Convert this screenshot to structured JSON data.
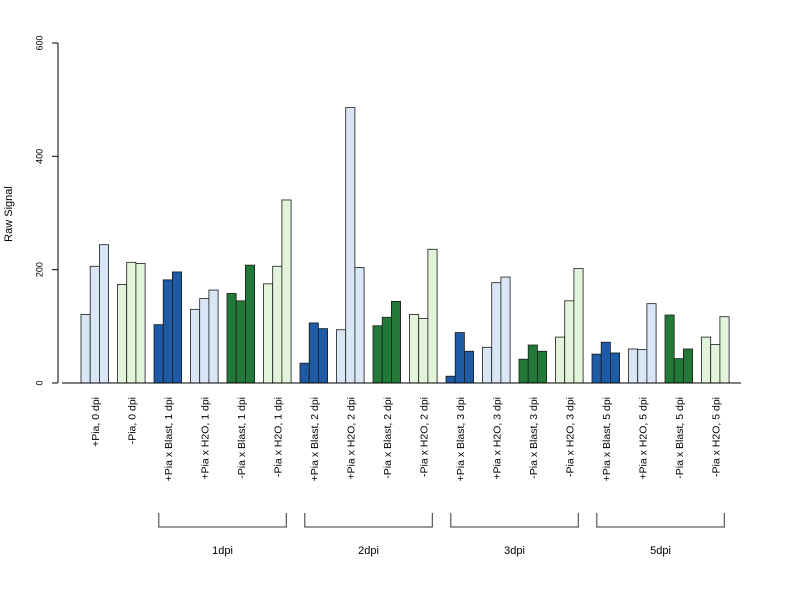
{
  "chart_data": {
    "type": "bar",
    "title": "",
    "xlabel": "",
    "ylabel": "Raw Signal",
    "ylim": [
      0,
      600
    ],
    "yticks": [
      0,
      200,
      400,
      600
    ],
    "grid": false,
    "colors": {
      "light_blue": "#d9e6f5",
      "dark_blue": "#1f5aa6",
      "light_green": "#e2f4da",
      "dark_green": "#237a38"
    },
    "groups": [
      {
        "label": "+Pia, 0 dpi",
        "color": "light_blue",
        "values": [
          121,
          206,
          244
        ]
      },
      {
        "label": "-Pia, 0 dpi",
        "color": "light_green",
        "values": [
          174,
          213,
          211
        ]
      },
      {
        "label": "+Pia x Blast, 1 dpi",
        "color": "dark_blue",
        "values": [
          103,
          182,
          196
        ]
      },
      {
        "label": "+Pia x H2O, 1 dpi",
        "color": "light_blue",
        "values": [
          130,
          149,
          164
        ]
      },
      {
        "label": "-Pia x Blast, 1 dpi",
        "color": "dark_green",
        "values": [
          158,
          145,
          208
        ]
      },
      {
        "label": "-Pia x H2O, 1 dpi",
        "color": "light_green",
        "values": [
          175,
          206,
          323
        ]
      },
      {
        "label": "+Pia x Blast, 2 dpi",
        "color": "dark_blue",
        "values": [
          35,
          106,
          96
        ]
      },
      {
        "label": "+Pia x H2O, 2 dpi",
        "color": "light_blue",
        "values": [
          94,
          486,
          204
        ]
      },
      {
        "label": "-Pia x Blast, 2 dpi",
        "color": "dark_green",
        "values": [
          101,
          116,
          144
        ]
      },
      {
        "label": "-Pia x H2O, 2 dpi",
        "color": "light_green",
        "values": [
          121,
          114,
          236
        ]
      },
      {
        "label": "+Pia x Blast, 3 dpi",
        "color": "dark_blue",
        "values": [
          12,
          89,
          56
        ]
      },
      {
        "label": "+Pia x H2O, 3 dpi",
        "color": "light_blue",
        "values": [
          63,
          177,
          187
        ]
      },
      {
        "label": "-Pia x Blast, 3 dpi",
        "color": "dark_green",
        "values": [
          42,
          67,
          56
        ]
      },
      {
        "label": "-Pia x H2O, 3 dpi",
        "color": "light_green",
        "values": [
          81,
          145,
          202
        ]
      },
      {
        "label": "+Pia x Blast, 5 dpi",
        "color": "dark_blue",
        "values": [
          51,
          72,
          53
        ]
      },
      {
        "label": "+Pia x H2O, 5 dpi",
        "color": "light_blue",
        "values": [
          60,
          59,
          140
        ]
      },
      {
        "label": "-Pia x Blast, 5 dpi",
        "color": "dark_green",
        "values": [
          120,
          43,
          60
        ]
      },
      {
        "label": "-Pia x H2O, 5 dpi",
        "color": "light_green",
        "values": [
          81,
          68,
          117
        ]
      }
    ],
    "brackets": [
      {
        "label": "1dpi",
        "from_group": 2,
        "to_group": 5
      },
      {
        "label": "2dpi",
        "from_group": 6,
        "to_group": 9
      },
      {
        "label": "3dpi",
        "from_group": 10,
        "to_group": 13
      },
      {
        "label": "5dpi",
        "from_group": 14,
        "to_group": 17
      }
    ]
  }
}
